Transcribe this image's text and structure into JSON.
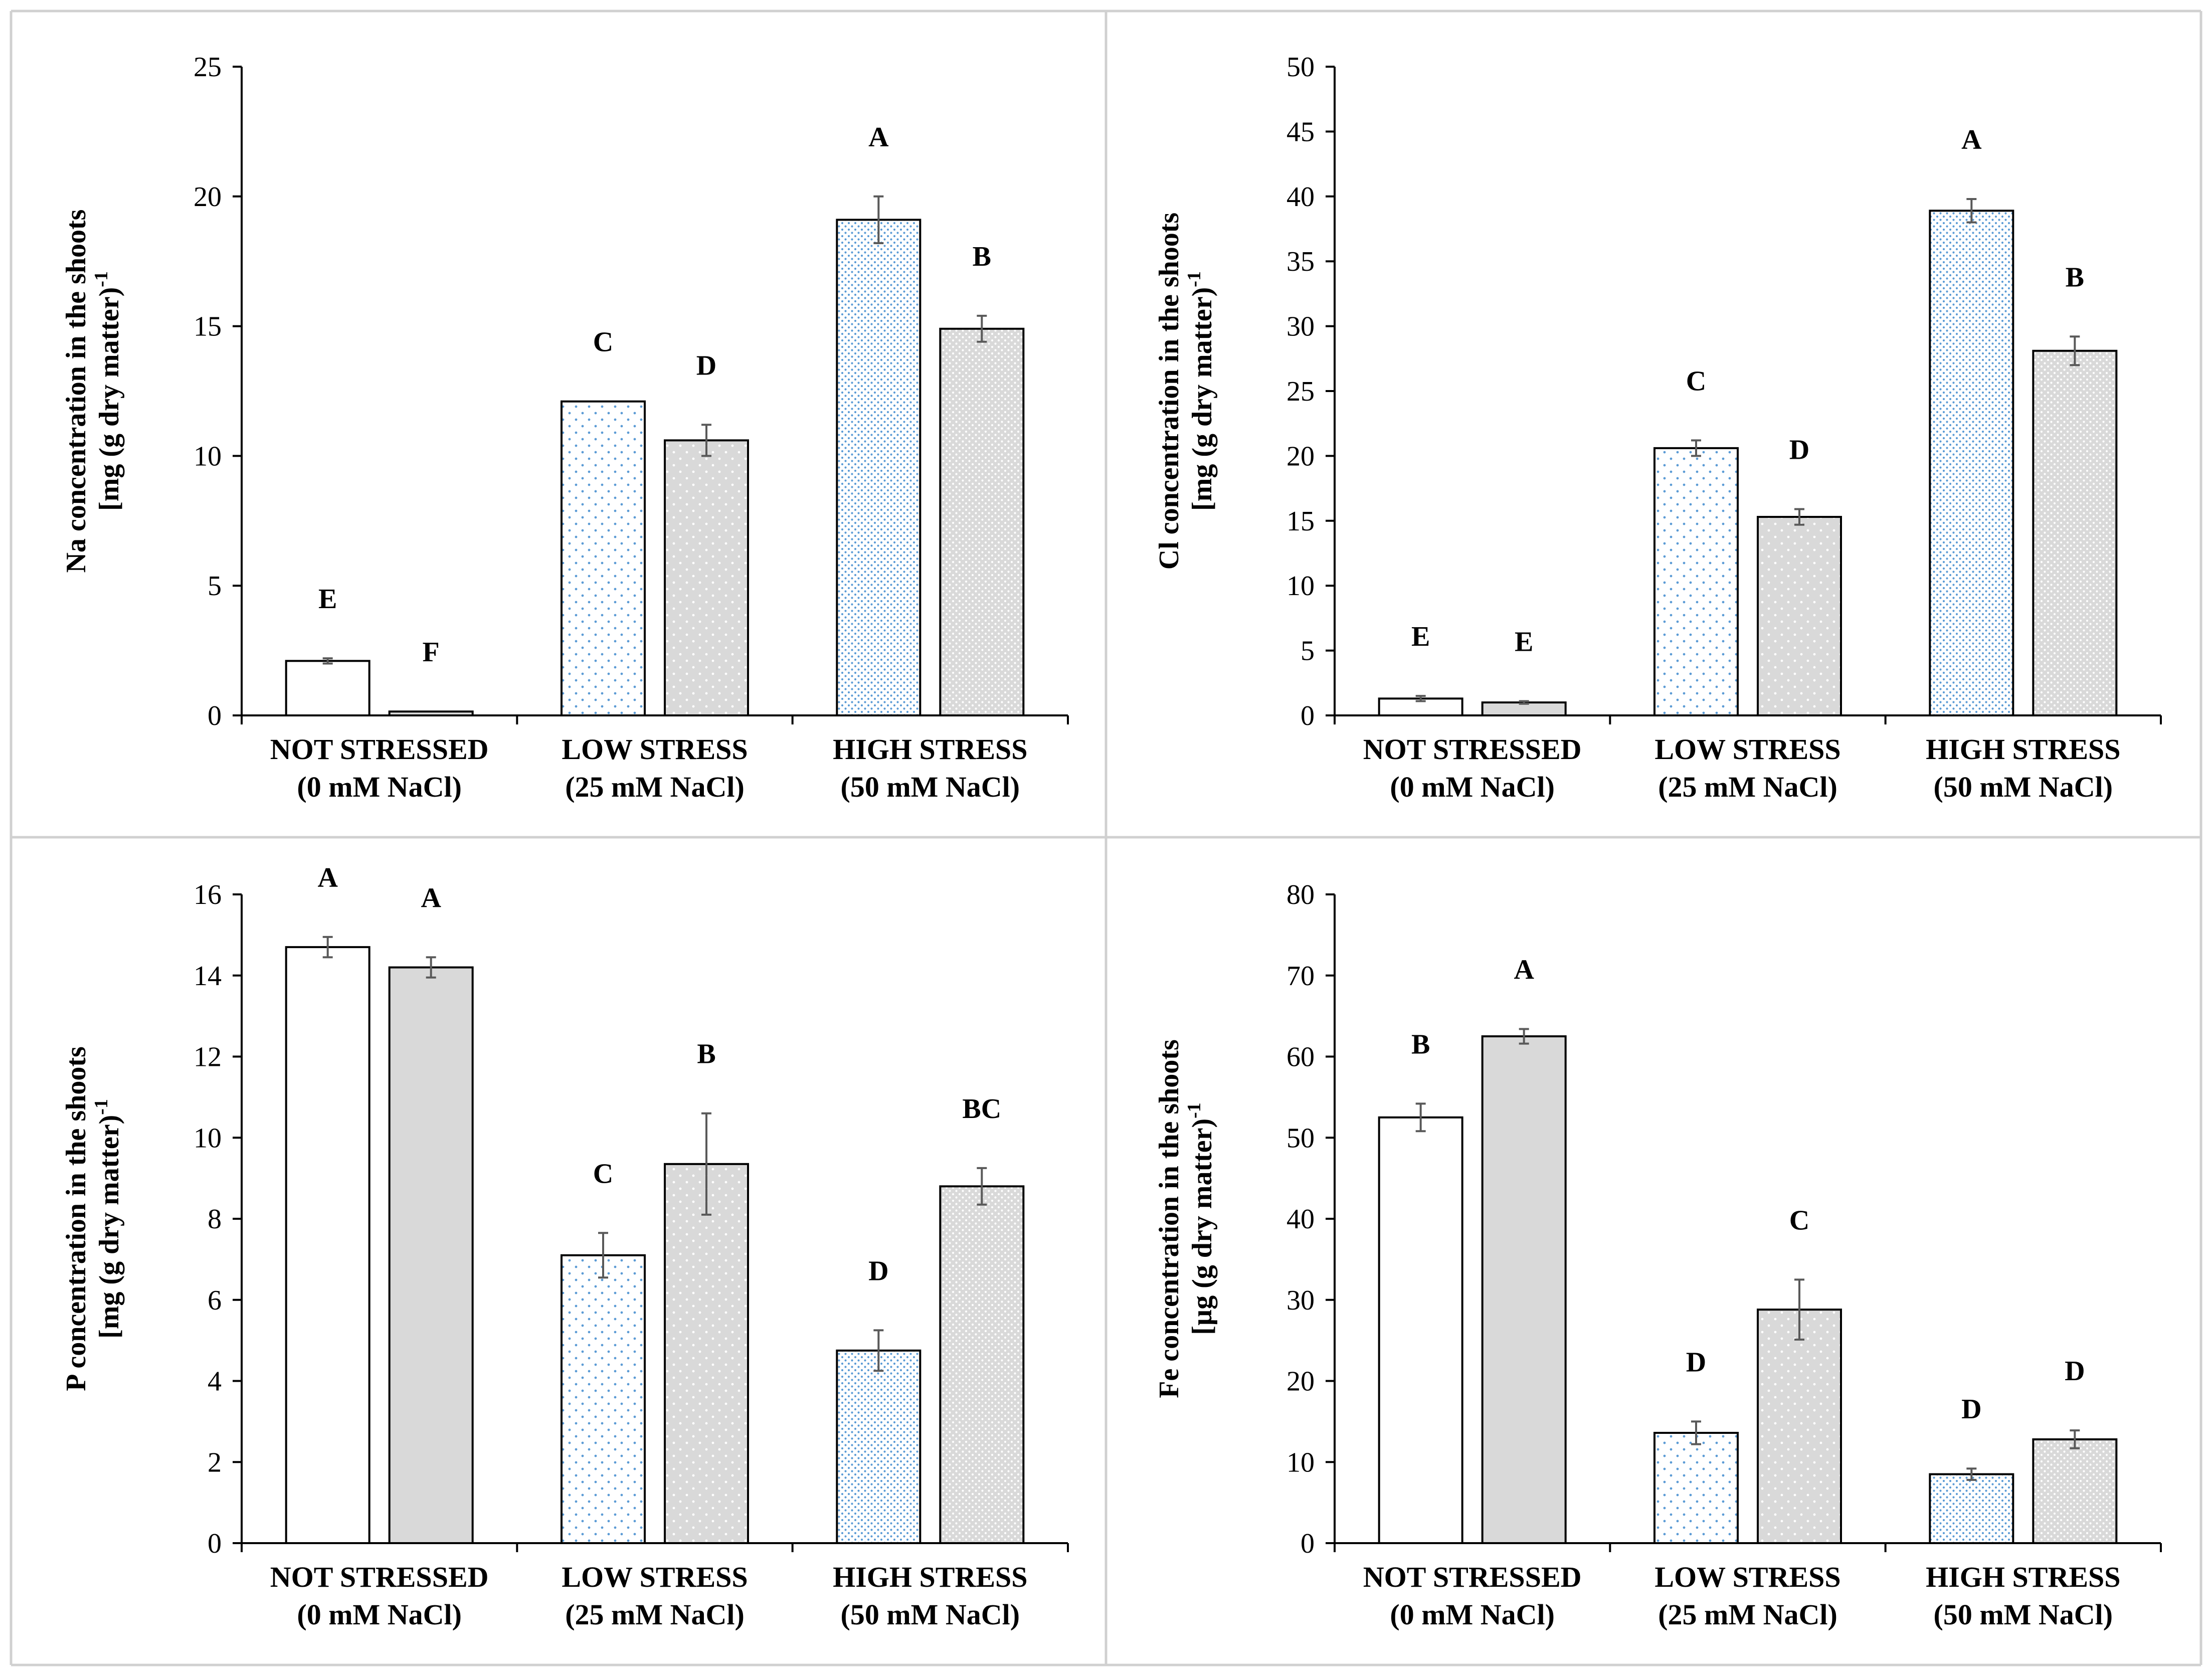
{
  "chart_data": [
    {
      "type": "bar",
      "panel": "Na",
      "ylabel_line1": "Na concentration  in the shoots",
      "ylabel_line2": "[mg (g dry  matter)",
      "ylabel_sup": "-1",
      "ylim": [
        0,
        25
      ],
      "yticks": [
        0,
        5,
        10,
        15,
        20,
        25
      ],
      "yticks_labels": [
        "0",
        "5",
        "10",
        "15",
        "20",
        "25"
      ],
      "categories": [
        {
          "line1": "NOT STRESSED",
          "line2": "(0 mM NaCl)"
        },
        {
          "line1": "LOW STRESS",
          "line2": "(25 mM NaCl)"
        },
        {
          "line1": "HIGH STRESS",
          "line2": "(50 mM NaCl)"
        }
      ],
      "bars": [
        {
          "category": 0,
          "series": 0,
          "value": 2.1,
          "error": 0.1,
          "letter": "E"
        },
        {
          "category": 0,
          "series": 1,
          "value": 0.15,
          "error": 0.0,
          "letter": "F"
        },
        {
          "category": 1,
          "series": 0,
          "value": 12.1,
          "error": 0.0,
          "letter": "C"
        },
        {
          "category": 1,
          "series": 1,
          "value": 10.6,
          "error": 0.6,
          "letter": "D"
        },
        {
          "category": 2,
          "series": 0,
          "value": 19.1,
          "error": 0.9,
          "letter": "A"
        },
        {
          "category": 2,
          "series": 1,
          "value": 14.9,
          "error": 0.5,
          "letter": "B"
        }
      ]
    },
    {
      "type": "bar",
      "panel": "Cl",
      "ylabel_line1": "Cl concentration  in the shoots",
      "ylabel_line2": "[mg (g dry  matter)",
      "ylabel_sup": "-1",
      "ylim": [
        0,
        50
      ],
      "yticks": [
        0,
        5,
        10,
        15,
        20,
        25,
        30,
        35,
        40,
        45,
        50
      ],
      "yticks_labels": [
        "0",
        "5",
        "10",
        "15",
        "20",
        "25",
        "30",
        "35",
        "40",
        "45",
        "50"
      ],
      "categories": [
        {
          "line1": "NOT STRESSED",
          "line2": "(0 mM NaCl)"
        },
        {
          "line1": "LOW STRESS",
          "line2": "(25 mM NaCl)"
        },
        {
          "line1": "HIGH STRESS",
          "line2": "(50 mM NaCl)"
        }
      ],
      "bars": [
        {
          "category": 0,
          "series": 0,
          "value": 1.3,
          "error": 0.2,
          "letter": "E"
        },
        {
          "category": 0,
          "series": 1,
          "value": 1.0,
          "error": 0.1,
          "letter": "E"
        },
        {
          "category": 1,
          "series": 0,
          "value": 20.6,
          "error": 0.6,
          "letter": "C"
        },
        {
          "category": 1,
          "series": 1,
          "value": 15.3,
          "error": 0.6,
          "letter": "D"
        },
        {
          "category": 2,
          "series": 0,
          "value": 38.9,
          "error": 0.9,
          "letter": "A"
        },
        {
          "category": 2,
          "series": 1,
          "value": 28.1,
          "error": 1.1,
          "letter": "B"
        }
      ]
    },
    {
      "type": "bar",
      "panel": "P",
      "ylabel_line1": "P concentration  in the shoots",
      "ylabel_line2": "[mg (g dry  matter)",
      "ylabel_sup": "-1",
      "ylim": [
        0,
        16
      ],
      "yticks": [
        0,
        2,
        4,
        6,
        8,
        10,
        12,
        14,
        16
      ],
      "yticks_labels": [
        "0",
        "2",
        "4",
        "6",
        "8",
        "10",
        "12",
        "14",
        "16"
      ],
      "categories": [
        {
          "line1": "NOT STRESSED",
          "line2": "(0 mM NaCl)"
        },
        {
          "line1": "LOW STRESS",
          "line2": "(25 mM NaCl)"
        },
        {
          "line1": "HIGH STRESS",
          "line2": "(50 mM NaCl)"
        }
      ],
      "bars": [
        {
          "category": 0,
          "series": 0,
          "value": 14.7,
          "error": 0.25,
          "letter": "A"
        },
        {
          "category": 0,
          "series": 1,
          "value": 14.2,
          "error": 0.25,
          "letter": "A"
        },
        {
          "category": 1,
          "series": 0,
          "value": 7.1,
          "error": 0.55,
          "letter": "C"
        },
        {
          "category": 1,
          "series": 1,
          "value": 9.35,
          "error": 1.25,
          "letter": "B"
        },
        {
          "category": 2,
          "series": 0,
          "value": 4.75,
          "error": 0.5,
          "letter": "D"
        },
        {
          "category": 2,
          "series": 1,
          "value": 8.8,
          "error": 0.45,
          "letter": "BC"
        }
      ]
    },
    {
      "type": "bar",
      "panel": "Fe",
      "ylabel_line1": "Fe concentration  in the shoots",
      "ylabel_line2": "[µg (g dry  matter)",
      "ylabel_sup": "-1",
      "ylim": [
        0,
        80
      ],
      "yticks": [
        0,
        10,
        20,
        30,
        40,
        50,
        60,
        70,
        80
      ],
      "yticks_labels": [
        "0",
        "10",
        "20",
        "30",
        "40",
        "50",
        "60",
        "70",
        "80"
      ],
      "categories": [
        {
          "line1": "NOT STRESSED",
          "line2": "(0 mM NaCl)"
        },
        {
          "line1": "LOW STRESS",
          "line2": "(25 mM NaCl)"
        },
        {
          "line1": "HIGH STRESS",
          "line2": "(50 mM NaCl)"
        }
      ],
      "bars": [
        {
          "category": 0,
          "series": 0,
          "value": 52.5,
          "error": 1.7,
          "letter": "B"
        },
        {
          "category": 0,
          "series": 1,
          "value": 62.5,
          "error": 0.9,
          "letter": "A"
        },
        {
          "category": 1,
          "series": 0,
          "value": 13.6,
          "error": 1.4,
          "letter": "D"
        },
        {
          "category": 1,
          "series": 1,
          "value": 28.8,
          "error": 3.7,
          "letter": "C"
        },
        {
          "category": 2,
          "series": 0,
          "value": 8.5,
          "error": 0.7,
          "letter": "D"
        },
        {
          "category": 2,
          "series": 1,
          "value": 12.8,
          "error": 1.1,
          "letter": "D"
        }
      ]
    }
  ],
  "style": {
    "border_color": "#d0d0d0",
    "axis_color": "#000000",
    "bar_outline": "#000000",
    "error_color": "#595959",
    "control_fill": "#ffffff",
    "treated_fill": "#d9d9d9",
    "blue_dot": "#5b9bd5",
    "white_dot": "#ffffff"
  }
}
